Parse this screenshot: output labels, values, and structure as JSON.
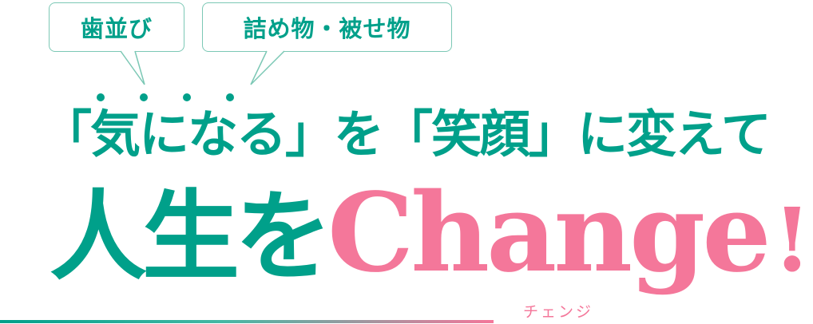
{
  "bubbles": [
    {
      "label": "歯並び"
    },
    {
      "label": "詰め物・被せ物"
    }
  ],
  "headline_line1": "「気になる」を「笑顔」に変えて",
  "headline_line2": {
    "japanese": "人生を",
    "english": "Change",
    "exclamation": "!"
  },
  "ruby": "チェンジ",
  "colors": {
    "teal": "#00a08a",
    "pink": "#f4779a",
    "bubble_border": "#7cc8b5"
  }
}
